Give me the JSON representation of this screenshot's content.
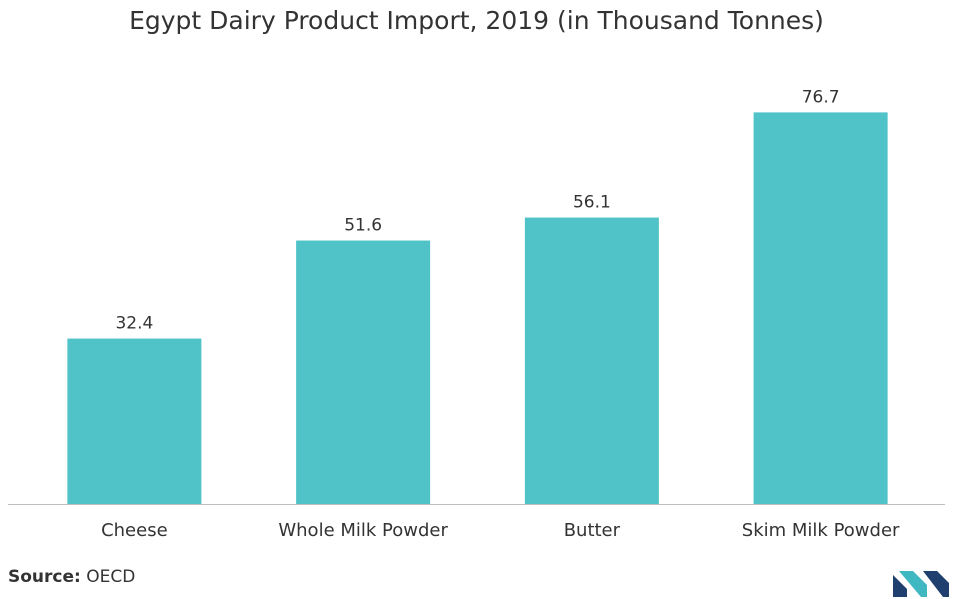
{
  "chart_data": {
    "type": "bar",
    "title": "Egypt Dairy Product Import, 2019 (in Thousand Tonnes)",
    "categories": [
      "Cheese",
      "Whole Milk Powder",
      "Butter",
      "Skim Milk Powder"
    ],
    "values": [
      32.4,
      51.6,
      56.1,
      76.7
    ],
    "data_labels": [
      "32.4",
      "51.6",
      "56.1",
      "76.7"
    ],
    "xlabel": "",
    "ylabel": "",
    "ylim": [
      0,
      85
    ],
    "grid": false,
    "legend": "none",
    "bar_color": "#4FC3C8",
    "axis_color": "#bfbfbf"
  },
  "source": {
    "label": "Source:",
    "value": "OECD"
  },
  "logo": {
    "icon": "mordor-intelligence-logo-icon",
    "colors": [
      "#1f3f6e",
      "#3fb8c2"
    ]
  }
}
